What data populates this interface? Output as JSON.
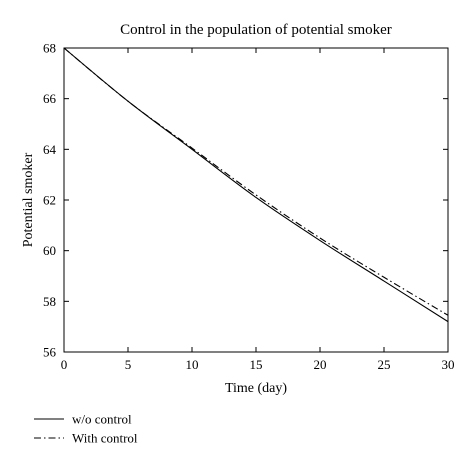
{
  "chart_data": {
    "type": "line",
    "title": "Control in the population of potential smoker",
    "xlabel": "Time (day)",
    "ylabel": "Potential smoker",
    "xlim": [
      0,
      30
    ],
    "ylim": [
      56,
      68
    ],
    "x_ticks": [
      "0",
      "5",
      "10",
      "15",
      "20",
      "25",
      "30"
    ],
    "y_ticks": [
      "56",
      "58",
      "60",
      "62",
      "64",
      "66",
      "68"
    ],
    "grid": false,
    "legend_position": "below-left",
    "series": [
      {
        "name": "w/o control",
        "style": "solid",
        "color": "#000000",
        "x": [
          0,
          5,
          10,
          15,
          20,
          25,
          30
        ],
        "y": [
          68.0,
          65.9,
          64.0,
          62.1,
          60.4,
          58.8,
          57.2
        ]
      },
      {
        "name": "With control",
        "style": "dash-dot",
        "color": "#000000",
        "x": [
          0,
          5,
          10,
          15,
          20,
          25,
          30
        ],
        "y": [
          68.0,
          65.9,
          64.05,
          62.2,
          60.5,
          58.95,
          57.45
        ]
      }
    ]
  }
}
